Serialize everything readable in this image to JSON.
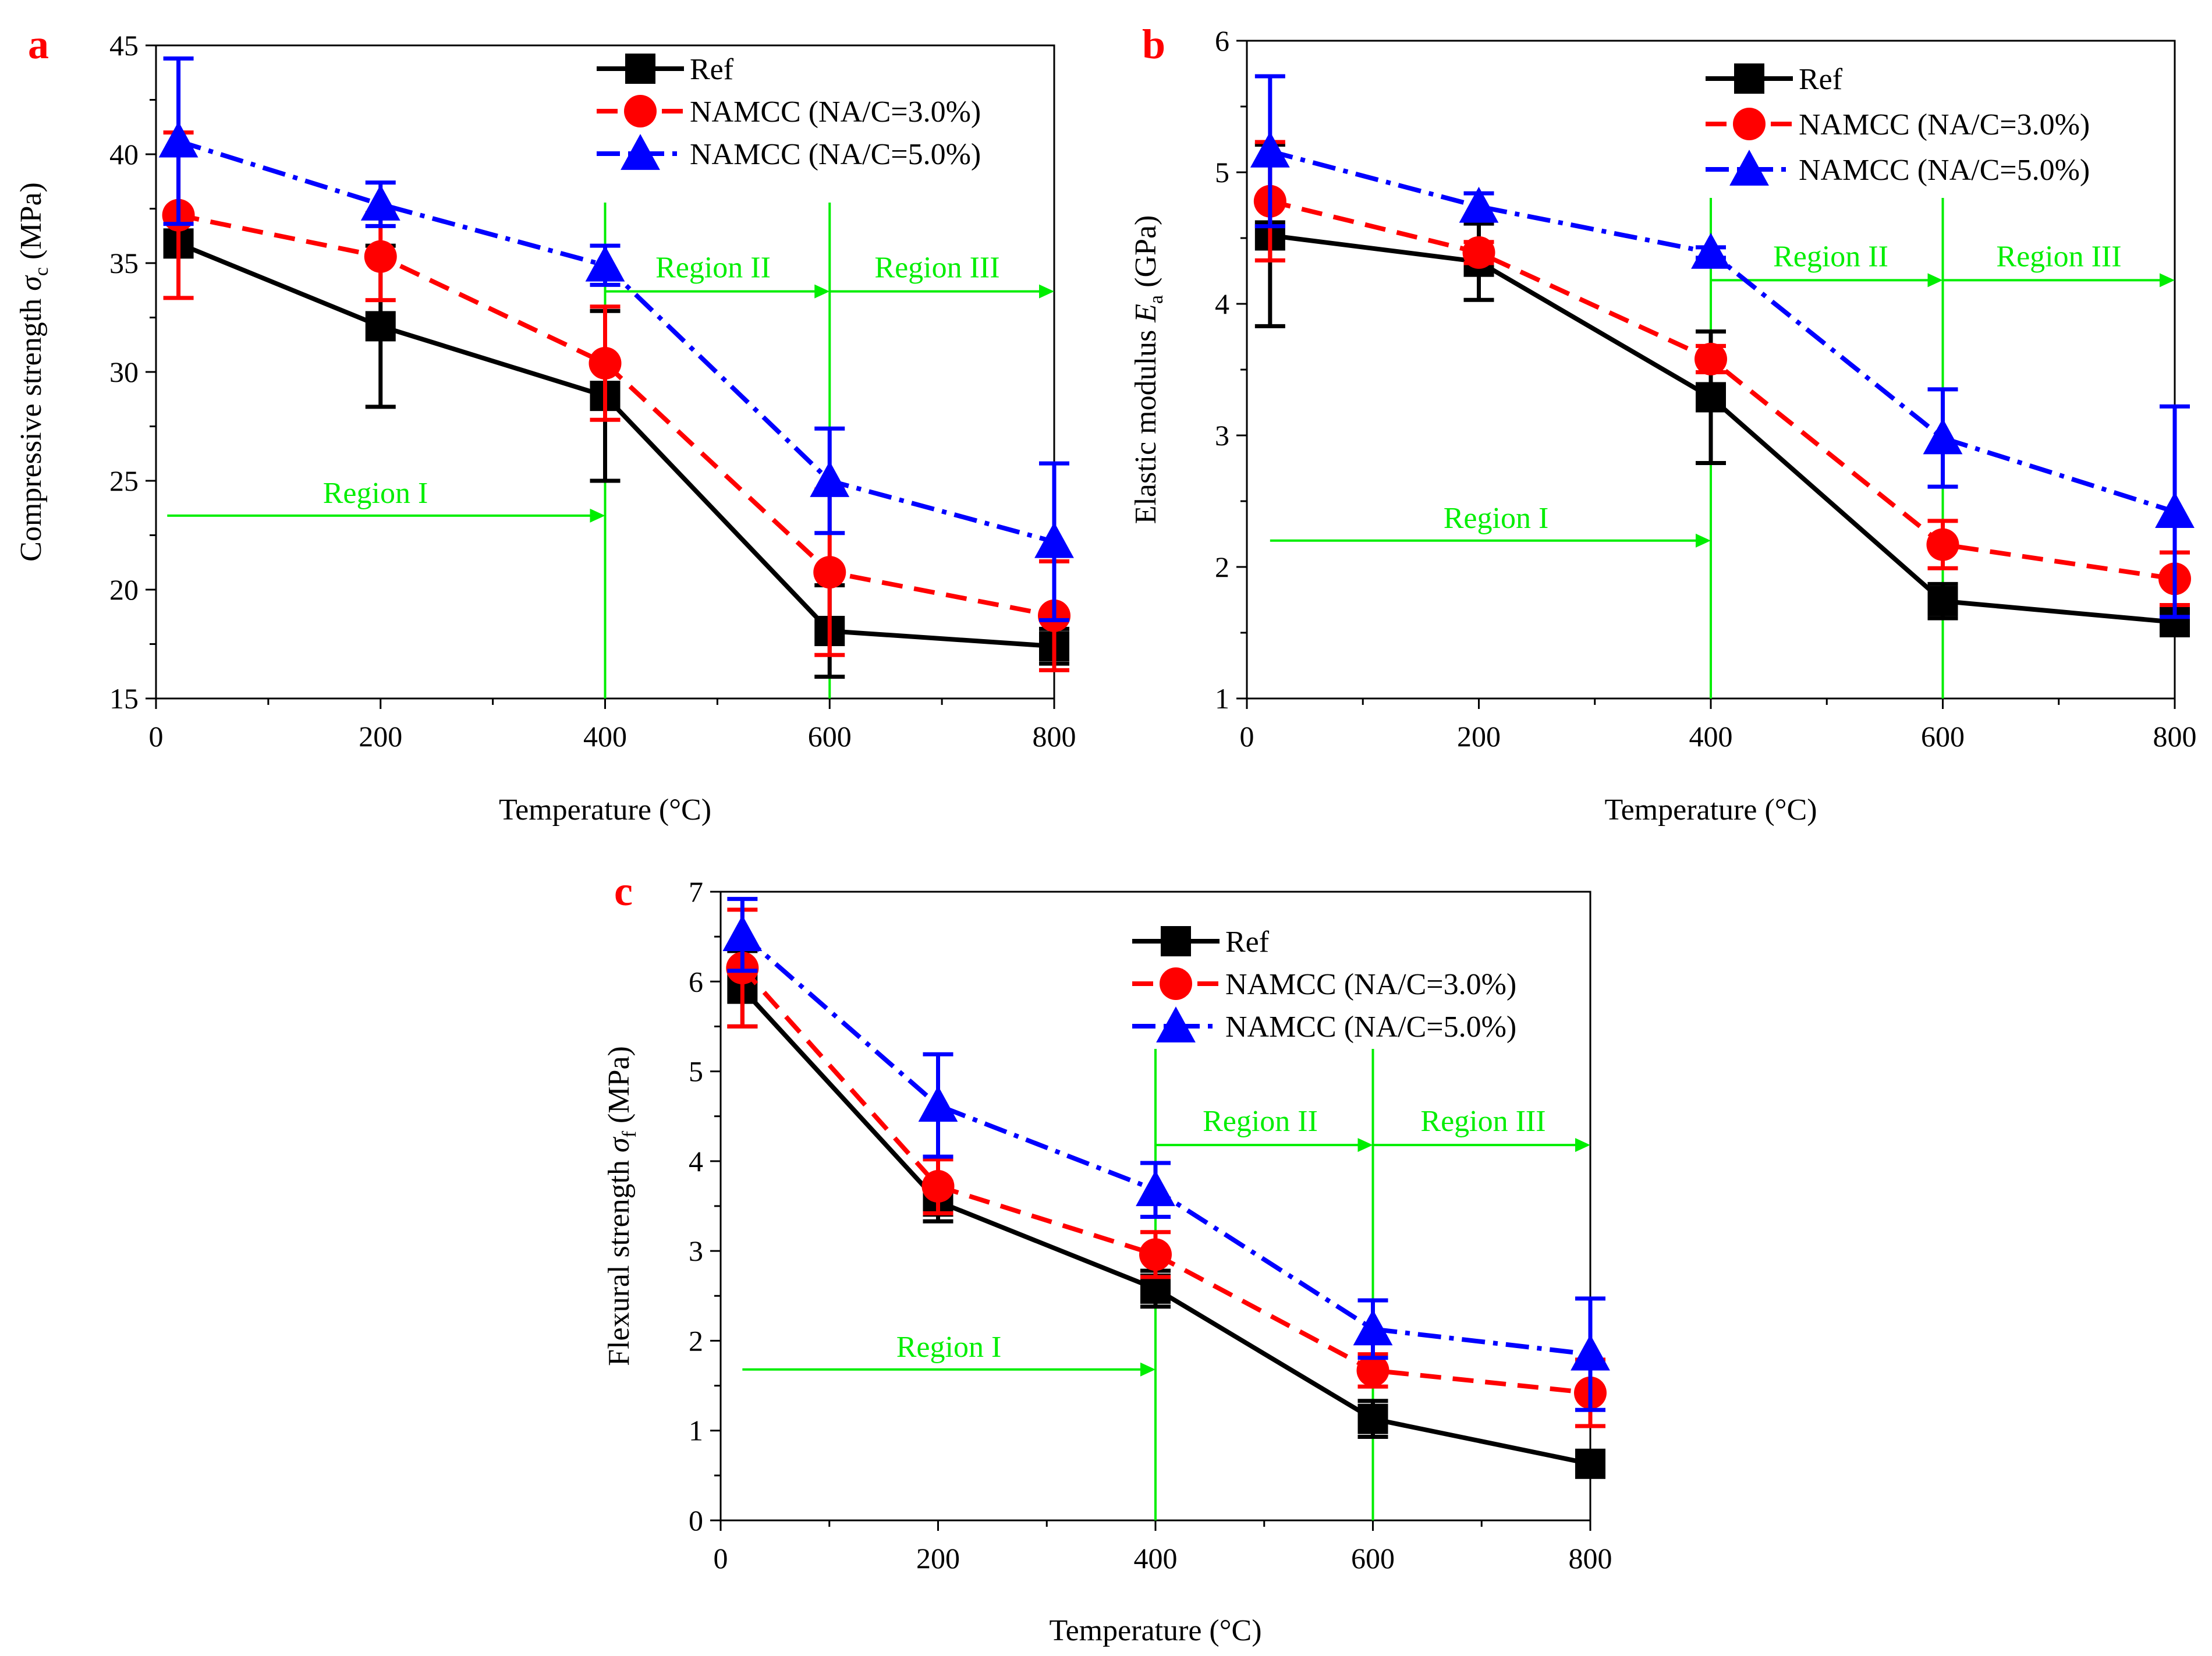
{
  "colors": {
    "ref": "#000000",
    "na3": "#ff0000",
    "na5": "#0000ff",
    "region": "#00ee00",
    "panel_label": "#ff0000"
  },
  "legend_labels": [
    "Ref",
    "NAMCC (NA/C=3.0%)",
    "NAMCC (NA/C=5.0%)"
  ],
  "region_labels": [
    "Region I",
    "Region II",
    "Region III"
  ],
  "chart_data": [
    {
      "panel": "a",
      "type": "line",
      "title": "",
      "xlabel": "Temperature (°C)",
      "ylabel_main": "Compressive strength ",
      "ylabel_sym": "σ",
      "ylabel_sub": "c",
      "ylabel_tail": " (MPa)",
      "xlim": [
        0,
        800
      ],
      "ylim": [
        15,
        45
      ],
      "xticks": [
        0,
        200,
        400,
        600,
        800
      ],
      "yticks": [
        15,
        20,
        25,
        30,
        35,
        40,
        45
      ],
      "x": [
        20,
        200,
        400,
        600,
        800
      ],
      "series": [
        {
          "name": "Ref",
          "color_key": "ref",
          "marker": "square",
          "dash": "solid",
          "values": [
            35.9,
            32.1,
            28.9,
            18.1,
            17.4
          ],
          "err": [
            0,
            3.7,
            3.9,
            2.1,
            0.8
          ]
        },
        {
          "name": "NAMCC (NA/C=3.0%)",
          "color_key": "na3",
          "marker": "circle",
          "dash": "dash",
          "values": [
            37.2,
            35.3,
            30.4,
            20.8,
            18.8
          ],
          "err": [
            3.8,
            2.0,
            2.6,
            3.8,
            2.5
          ]
        },
        {
          "name": "NAMCC (NA/C=5.0%)",
          "color_key": "na5",
          "marker": "triangle",
          "dash": "dashdot",
          "values": [
            40.6,
            37.7,
            34.9,
            25.0,
            22.2
          ],
          "err": [
            3.8,
            1.0,
            0.9,
            2.4,
            3.6
          ]
        }
      ],
      "regions": {
        "boundaries": [
          400,
          600
        ],
        "region1_arrow": [
          10,
          400
        ],
        "region23_y": 33.7,
        "region1_y": 23.4
      }
    },
    {
      "panel": "b",
      "type": "line",
      "title": "",
      "xlabel": "Temperature (°C)",
      "ylabel_main": "Elastic modulus ",
      "ylabel_sym": "E",
      "ylabel_sub": "a",
      "ylabel_tail": " (GPa)",
      "xlim": [
        0,
        800
      ],
      "ylim": [
        1,
        6
      ],
      "xticks": [
        0,
        200,
        400,
        600,
        800
      ],
      "yticks": [
        1,
        2,
        3,
        4,
        5,
        6
      ],
      "x": [
        20,
        200,
        400,
        600,
        800
      ],
      "series": [
        {
          "name": "Ref",
          "color_key": "ref",
          "marker": "square",
          "dash": "solid",
          "values": [
            4.52,
            4.32,
            3.29,
            1.74,
            1.58
          ],
          "err": [
            0.69,
            0.29,
            0.5,
            0.13,
            0.05
          ]
        },
        {
          "name": "NAMCC (NA/C=3.0%)",
          "color_key": "na3",
          "marker": "circle",
          "dash": "dash",
          "values": [
            4.78,
            4.39,
            3.58,
            2.17,
            1.91
          ],
          "err": [
            0.45,
            0.08,
            0.1,
            0.18,
            0.2
          ]
        },
        {
          "name": "NAMCC (NA/C=5.0%)",
          "color_key": "na5",
          "marker": "triangle",
          "dash": "dashdot",
          "values": [
            5.16,
            4.74,
            4.39,
            2.98,
            2.42
          ],
          "err": [
            0.57,
            0.1,
            0.04,
            0.37,
            0.8
          ]
        }
      ],
      "regions": {
        "boundaries": [
          400,
          600
        ],
        "region1_arrow": [
          20,
          400
        ],
        "region23_y": 4.18,
        "region1_y": 2.2
      }
    },
    {
      "panel": "c",
      "type": "line",
      "title": "",
      "xlabel": "Temperature (°C)",
      "ylabel_main": "Flexural strength ",
      "ylabel_sym": "σ",
      "ylabel_sub": "f",
      "ylabel_tail": " (MPa)",
      "xlim": [
        0,
        800
      ],
      "ylim": [
        0,
        7
      ],
      "xticks": [
        0,
        200,
        400,
        600,
        800
      ],
      "yticks": [
        0,
        1,
        2,
        3,
        4,
        5,
        6,
        7
      ],
      "x": [
        20,
        200,
        400,
        600,
        800
      ],
      "series": [
        {
          "name": "Ref",
          "color_key": "ref",
          "marker": "square",
          "dash": "solid",
          "values": [
            5.92,
            3.55,
            2.58,
            1.13,
            0.63
          ],
          "err": [
            0.42,
            0.22,
            0.2,
            0.2,
            0.07
          ]
        },
        {
          "name": "NAMCC (NA/C=3.0%)",
          "color_key": "na3",
          "marker": "circle",
          "dash": "dash",
          "values": [
            6.15,
            3.72,
            2.96,
            1.67,
            1.42
          ],
          "err": [
            0.65,
            0.3,
            0.25,
            0.18,
            0.37
          ]
        },
        {
          "name": "NAMCC (NA/C=5.0%)",
          "color_key": "na5",
          "marker": "triangle",
          "dash": "dashdot",
          "values": [
            6.52,
            4.62,
            3.68,
            2.13,
            1.85
          ],
          "err": [
            0.4,
            0.57,
            0.3,
            0.32,
            0.62
          ]
        }
      ],
      "regions": {
        "boundaries": [
          400,
          600
        ],
        "region1_arrow": [
          20,
          400
        ],
        "region23_y": 4.18,
        "region1_y": 1.68
      }
    }
  ]
}
